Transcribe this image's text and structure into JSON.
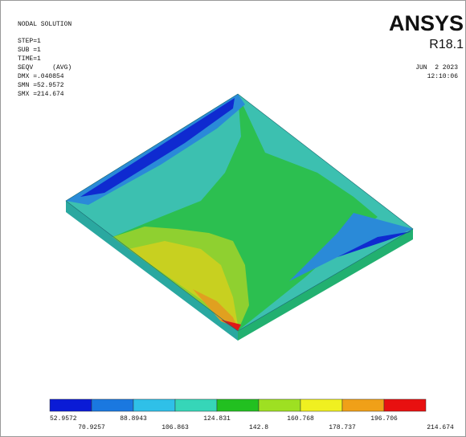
{
  "info": {
    "lines": [
      "NODAL SOLUTION",
      "STEP=1",
      "SUB =1",
      "TIME=1",
      "SEQV     (AVG)",
      "DMX =.040854",
      "SMN =52.9572",
      "SMX =214.674"
    ]
  },
  "brand": {
    "name": "ANSYS",
    "version": "R18.1",
    "date": "JUN  2 2023",
    "time": "12:10:06"
  },
  "legend": {
    "colors": [
      "#0a1bd6",
      "#1a78e0",
      "#2fc0e8",
      "#36d6b8",
      "#22c020",
      "#9ee022",
      "#f0f020",
      "#f0a018",
      "#e81010"
    ],
    "labels": [
      "52.9572",
      "70.9257",
      "88.8943",
      "106.863",
      "124.831",
      "142.8",
      "160.768",
      "178.737",
      "196.706",
      "214.674"
    ]
  }
}
